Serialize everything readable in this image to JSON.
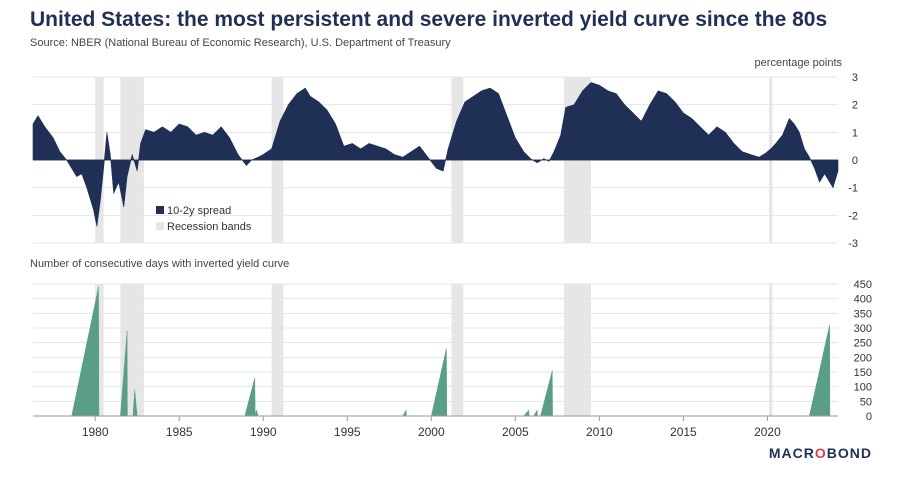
{
  "title": "United States: the most persistent and severe inverted yield curve since the 80s",
  "subtitle": "Source: NBER (National Bureau of Economic Research), U.S. Department of Treasury",
  "unit_label": "percentage points",
  "panel2_title": "Number of consecutive days with inverted yield curve",
  "logo": {
    "pre": "MACR",
    "o": "O",
    "post": "BOND"
  },
  "colors": {
    "spread": "#1f2f55",
    "days": "#5a9e8a",
    "recession": "#e6e6e6",
    "grid": "#e4e4e4",
    "zero": "#1f2f55"
  },
  "chart_data": [
    {
      "type": "area",
      "ylabel": "percentage points",
      "ylim": [
        -3,
        3
      ],
      "yticks": [
        "3",
        "2",
        "1",
        "0",
        "-1",
        "-2",
        "-3"
      ],
      "xlim": [
        1976.3,
        2024.2
      ],
      "legend": [
        "10-2y spread",
        "Recession bands"
      ],
      "legend_position": "bottom-left",
      "recession_bands": [
        [
          1980.0,
          1980.5
        ],
        [
          1981.5,
          1982.9
        ],
        [
          1990.5,
          1991.2
        ],
        [
          2001.2,
          2001.9
        ],
        [
          2007.9,
          2009.5
        ],
        [
          2020.1,
          2020.3
        ]
      ],
      "series": [
        {
          "name": "10-2y spread",
          "x": [
            1976.3,
            1976.6,
            1977.0,
            1977.5,
            1977.9,
            1978.3,
            1978.6,
            1978.9,
            1979.2,
            1979.5,
            1979.9,
            1980.1,
            1980.3,
            1980.5,
            1980.7,
            1980.9,
            1981.1,
            1981.4,
            1981.7,
            1981.9,
            1982.2,
            1982.5,
            1982.7,
            1983.0,
            1983.5,
            1984.0,
            1984.5,
            1985.0,
            1985.5,
            1986.0,
            1986.5,
            1987.0,
            1987.5,
            1988.0,
            1988.5,
            1989.0,
            1989.3,
            1989.7,
            1990.0,
            1990.5,
            1991.0,
            1991.5,
            1992.0,
            1992.5,
            1992.8,
            1993.3,
            1993.8,
            1994.3,
            1994.8,
            1995.3,
            1995.8,
            1996.3,
            1996.8,
            1997.3,
            1997.8,
            1998.3,
            1998.8,
            1999.3,
            1999.8,
            2000.3,
            2000.7,
            2001.0,
            2001.5,
            2002.0,
            2002.5,
            2003.0,
            2003.5,
            2004.0,
            2004.5,
            2005.0,
            2005.5,
            2005.9,
            2006.3,
            2006.7,
            2007.0,
            2007.3,
            2007.7,
            2008.0,
            2008.5,
            2009.0,
            2009.5,
            2010.0,
            2010.5,
            2011.0,
            2011.5,
            2012.0,
            2012.5,
            2013.0,
            2013.5,
            2014.0,
            2014.5,
            2015.0,
            2015.5,
            2016.0,
            2016.5,
            2017.0,
            2017.5,
            2018.0,
            2018.5,
            2019.0,
            2019.5,
            2019.9,
            2020.2,
            2020.5,
            2020.9,
            2021.3,
            2021.6,
            2021.9,
            2022.2,
            2022.5,
            2022.8,
            2023.1,
            2023.4,
            2023.7,
            2023.9,
            2024.2
          ],
          "values": [
            1.3,
            1.6,
            1.2,
            0.8,
            0.3,
            0.0,
            -0.3,
            -0.6,
            -0.5,
            -1.0,
            -1.8,
            -2.4,
            -1.5,
            -0.3,
            1.0,
            0.2,
            -1.2,
            -0.8,
            -1.7,
            -0.6,
            0.2,
            -0.4,
            0.6,
            1.1,
            1.0,
            1.2,
            1.0,
            1.3,
            1.2,
            0.9,
            1.0,
            0.9,
            1.2,
            0.8,
            0.2,
            -0.2,
            0.0,
            0.1,
            0.2,
            0.4,
            1.4,
            2.0,
            2.4,
            2.6,
            2.3,
            2.1,
            1.8,
            1.3,
            0.5,
            0.6,
            0.4,
            0.6,
            0.5,
            0.4,
            0.2,
            0.1,
            0.3,
            0.5,
            0.1,
            -0.3,
            -0.4,
            0.4,
            1.4,
            2.1,
            2.3,
            2.5,
            2.6,
            2.4,
            1.6,
            0.8,
            0.3,
            0.05,
            -0.1,
            0.05,
            -0.05,
            0.3,
            0.9,
            1.9,
            2.0,
            2.5,
            2.8,
            2.7,
            2.5,
            2.4,
            2.0,
            1.7,
            1.4,
            2.0,
            2.5,
            2.4,
            2.1,
            1.7,
            1.5,
            1.2,
            0.9,
            1.2,
            1.0,
            0.6,
            0.3,
            0.2,
            0.1,
            0.25,
            0.4,
            0.6,
            0.9,
            1.5,
            1.3,
            1.0,
            0.4,
            0.1,
            -0.3,
            -0.8,
            -0.5,
            -0.8,
            -1.0,
            -0.4
          ]
        }
      ]
    },
    {
      "type": "area",
      "ylim": [
        0,
        450
      ],
      "yticks": [
        "450",
        "400",
        "350",
        "300",
        "250",
        "200",
        "150",
        "100",
        "50",
        "0"
      ],
      "xlim": [
        1976.3,
        2024.2
      ],
      "xticks": [
        "1980",
        "1985",
        "1990",
        "1995",
        "2000",
        "2005",
        "2010",
        "2015",
        "2020"
      ],
      "series": [
        {
          "x": [
            1976.3,
            1978.6,
            1980.2,
            1980.22,
            1980.7,
            1981.5,
            1981.9,
            1981.92,
            1982.25,
            1982.35,
            1982.5,
            1982.52,
            1983.0,
            1988.9,
            1989.5,
            1989.52,
            1989.6,
            1989.7,
            1989.75,
            1998.3,
            1998.5,
            1998.52,
            1999.5,
            2000.0,
            2000.9,
            2000.92,
            2001.2,
            2005.5,
            2005.8,
            2005.82,
            2006.1,
            2006.3,
            2006.32,
            2006.5,
            2007.2,
            2007.22,
            2007.5,
            2022.5,
            2023.7,
            2023.72,
            2024.2
          ],
          "values": [
            0,
            0,
            440,
            0,
            0,
            0,
            290,
            0,
            0,
            90,
            0,
            0,
            0,
            0,
            130,
            0,
            20,
            0,
            0,
            0,
            20,
            0,
            0,
            0,
            230,
            0,
            0,
            0,
            20,
            0,
            0,
            20,
            0,
            0,
            155,
            0,
            0,
            0,
            310,
            0,
            0
          ]
        }
      ]
    }
  ]
}
